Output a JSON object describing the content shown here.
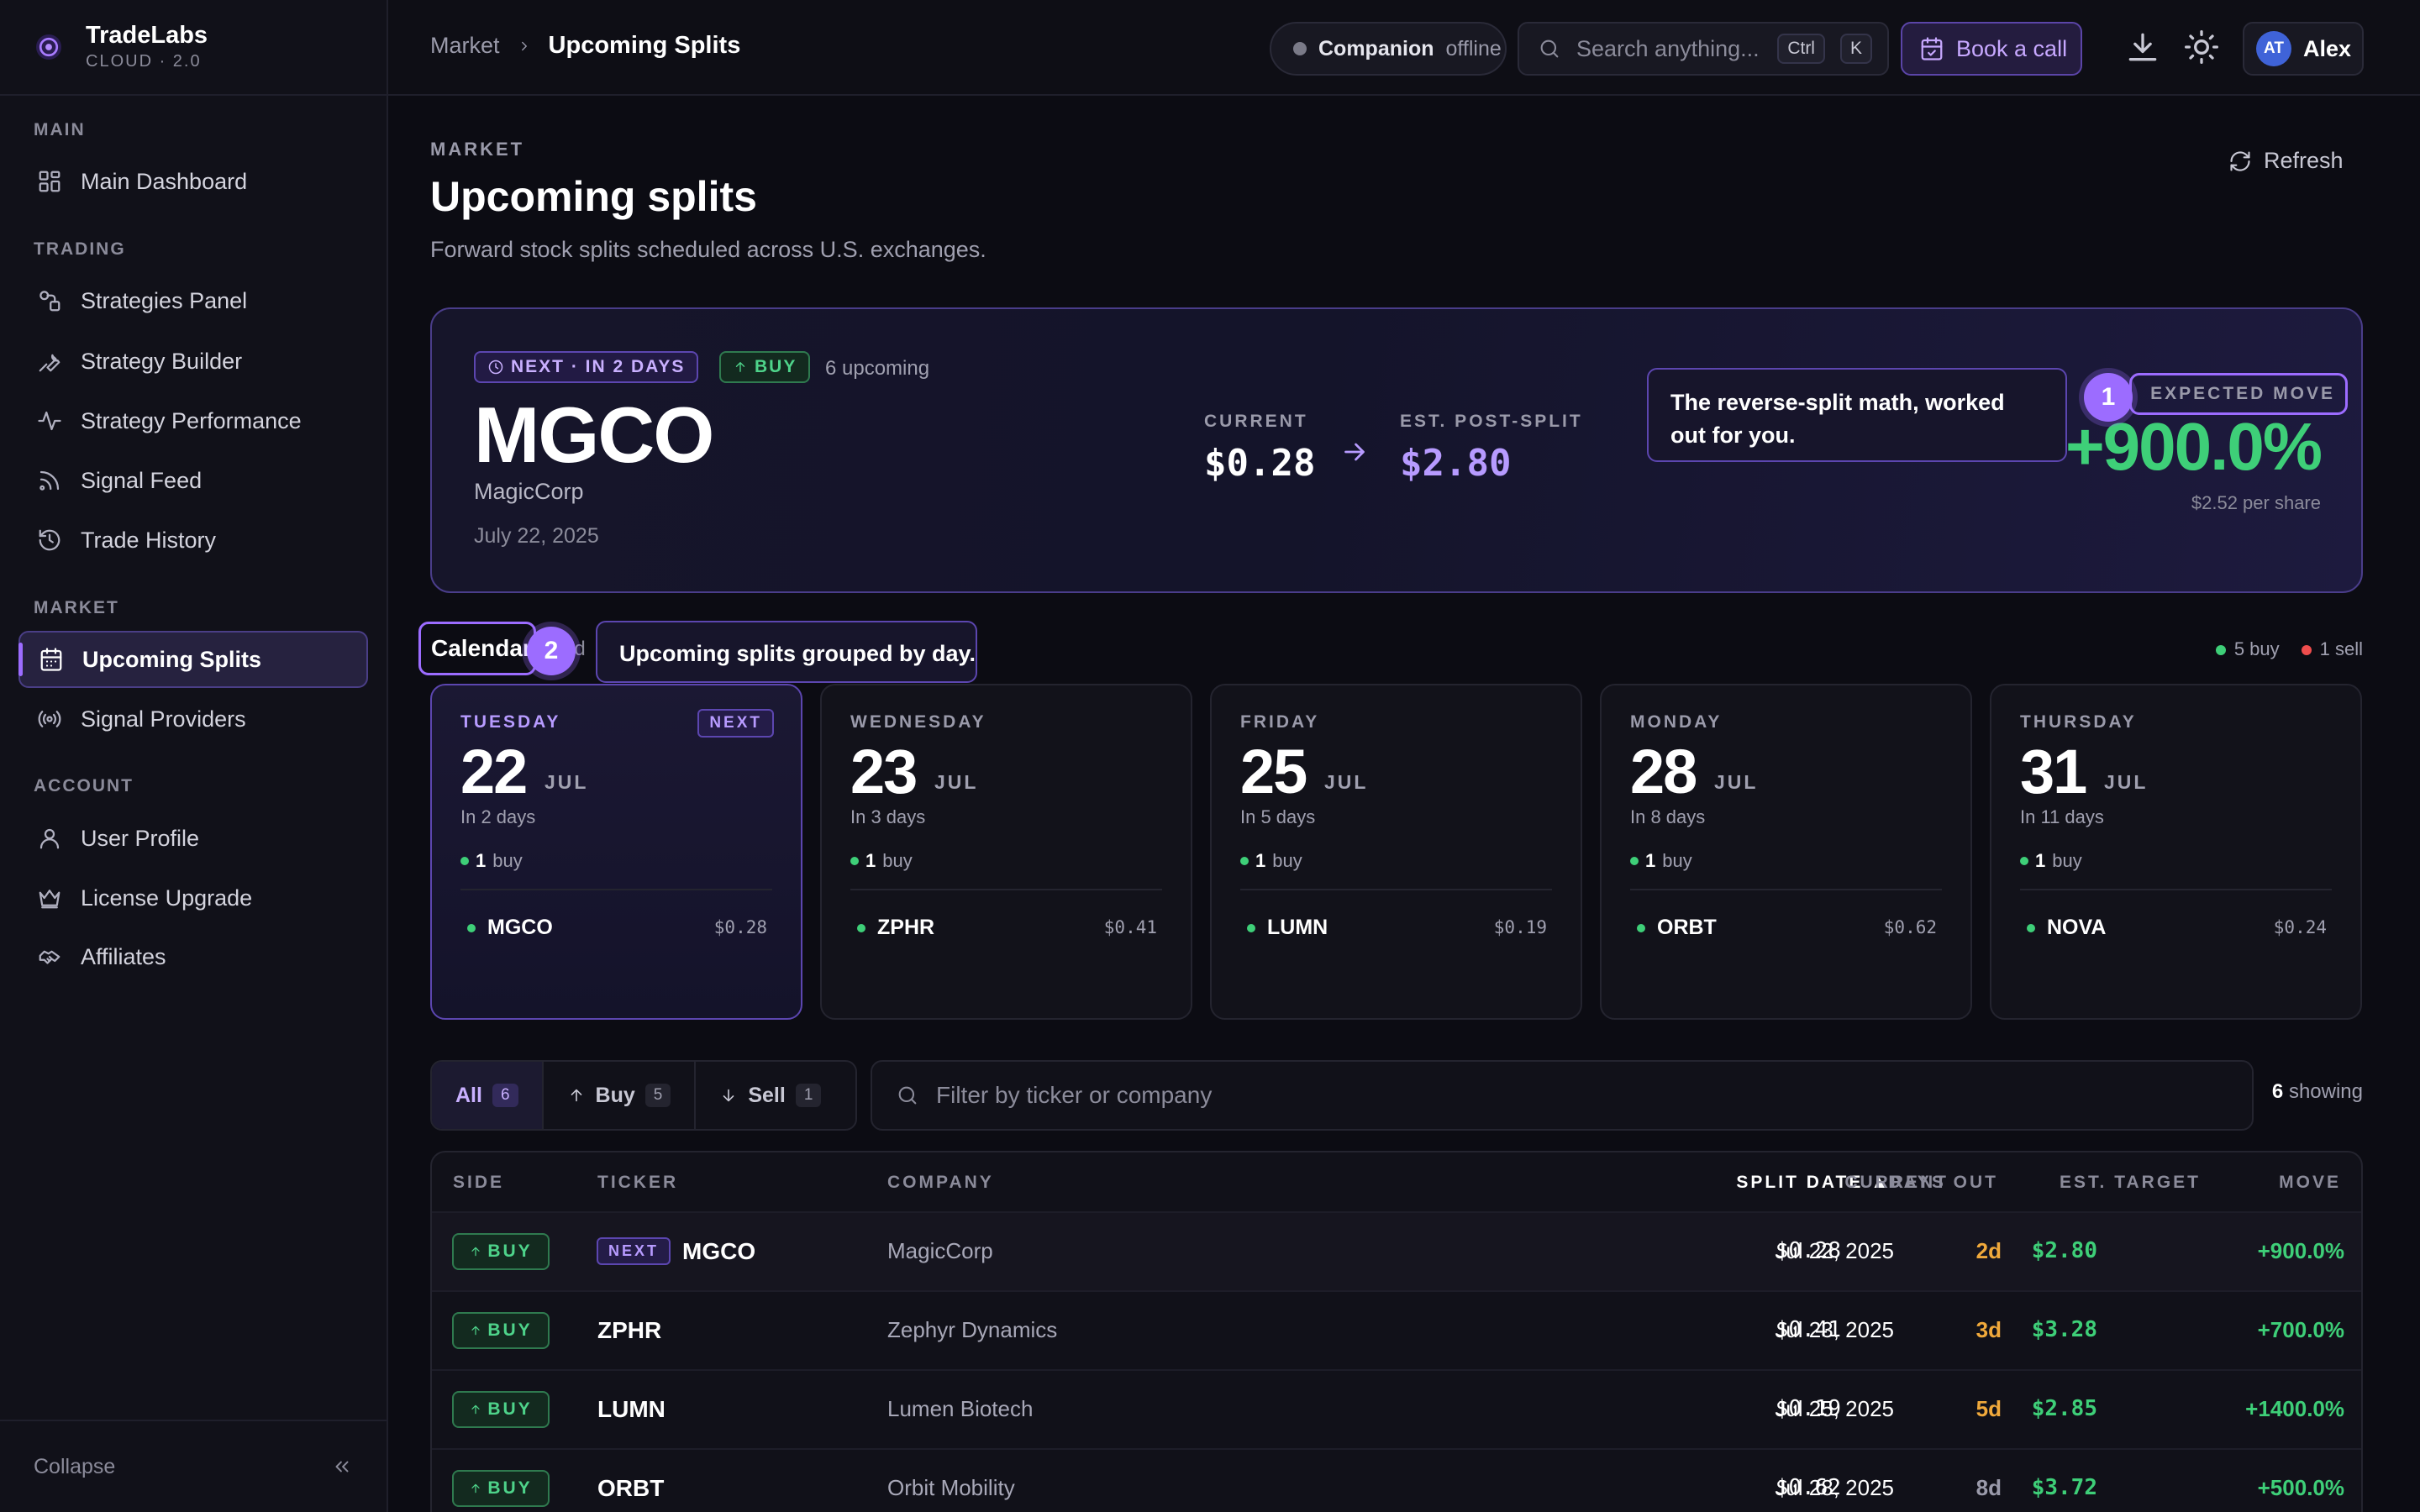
{
  "brand": {
    "name": "TradeLabs",
    "sub": "CLOUD · 2.0"
  },
  "sidebar": {
    "sections": [
      {
        "label": "MAIN",
        "items": [
          {
            "label": "Main Dashboard",
            "icon": "grid-icon"
          }
        ]
      },
      {
        "label": "TRADING",
        "items": [
          {
            "label": "Strategies Panel",
            "icon": "shapes-icon"
          },
          {
            "label": "Strategy Builder",
            "icon": "wrench-icon"
          },
          {
            "label": "Strategy Performance",
            "icon": "pulse-icon"
          },
          {
            "label": "Signal Feed",
            "icon": "rss-icon"
          },
          {
            "label": "Trade History",
            "icon": "history-icon"
          }
        ]
      },
      {
        "label": "MARKET",
        "items": [
          {
            "label": "Upcoming Splits",
            "icon": "calendar-icon",
            "active": true
          },
          {
            "label": "Signal Providers",
            "icon": "broadcast-icon"
          }
        ]
      },
      {
        "label": "ACCOUNT",
        "items": [
          {
            "label": "User Profile",
            "icon": "user-icon"
          },
          {
            "label": "License Upgrade",
            "icon": "crown-icon"
          },
          {
            "label": "Affiliates",
            "icon": "handshake-icon"
          }
        ]
      }
    ],
    "collapse": "Collapse"
  },
  "topbar": {
    "breadcrumb": {
      "parent": "Market",
      "current": "Upcoming Splits"
    },
    "companion": {
      "label": "Companion",
      "status": "offline"
    },
    "search": {
      "placeholder": "Search anything...",
      "kbd1": "Ctrl",
      "kbd2": "K"
    },
    "book_call": "Book a call",
    "user": {
      "initials": "AT",
      "name": "Alex"
    }
  },
  "header": {
    "kicker": "MARKET",
    "title": "Upcoming splits",
    "subtitle": "Forward stock splits scheduled across U.S. exchanges.",
    "refresh": "Refresh"
  },
  "hero": {
    "next_tag": "NEXT · IN 2 DAYS",
    "side_tag": "BUY",
    "upcoming": "6 upcoming",
    "ticker": "MGCO",
    "company": "MagicCorp",
    "date": "July 22, 2025",
    "current_label": "CURRENT",
    "current": "$0.28",
    "post_label": "EST. POST-SPLIT",
    "post": "$2.80",
    "move_label": "EXPECTED MOVE",
    "move": "+900.0%",
    "move_sub": "$2.52 per share",
    "tip": "The reverse-split math, worked out for you.",
    "tip_num": "1"
  },
  "calendar": {
    "tab": "Calendar",
    "tab_hidden": "ad",
    "tip": "Upcoming splits grouped by day.",
    "tip_num": "2",
    "legend": {
      "buy": "5 buy",
      "sell": "1 sell"
    },
    "days": [
      {
        "weekday": "TUESDAY",
        "day": "22",
        "month": "JUL",
        "in": "In 2 days",
        "count": "1",
        "count_label": "buy",
        "ticker": "MGCO",
        "price": "$0.28",
        "next": "NEXT"
      },
      {
        "weekday": "WEDNESDAY",
        "day": "23",
        "month": "JUL",
        "in": "In 3 days",
        "count": "1",
        "count_label": "buy",
        "ticker": "ZPHR",
        "price": "$0.41"
      },
      {
        "weekday": "FRIDAY",
        "day": "25",
        "month": "JUL",
        "in": "In 5 days",
        "count": "1",
        "count_label": "buy",
        "ticker": "LUMN",
        "price": "$0.19"
      },
      {
        "weekday": "MONDAY",
        "day": "28",
        "month": "JUL",
        "in": "In 8 days",
        "count": "1",
        "count_label": "buy",
        "ticker": "ORBT",
        "price": "$0.62"
      },
      {
        "weekday": "THURSDAY",
        "day": "31",
        "month": "JUL",
        "in": "In 11 days",
        "count": "1",
        "count_label": "buy",
        "ticker": "NOVA",
        "price": "$0.24"
      }
    ]
  },
  "filters": {
    "all": {
      "label": "All",
      "count": "6"
    },
    "buy": {
      "label": "Buy",
      "count": "5"
    },
    "sell": {
      "label": "Sell",
      "count": "1"
    },
    "search_placeholder": "Filter by ticker or company",
    "showing_count": "6",
    "showing_label": "showing"
  },
  "table": {
    "headers": {
      "side": "SIDE",
      "ticker": "TICKER",
      "company": "COMPANY",
      "split_date": "SPLIT DATE ▲",
      "days_out": "DAYS OUT",
      "current": "CURRENT",
      "target": "EST. TARGET",
      "move": "MOVE"
    },
    "rows": [
      {
        "side": "BUY",
        "next": "NEXT",
        "ticker": "MGCO",
        "company": "MagicCorp",
        "date": "Jul 22, 2025",
        "days": "2d",
        "current": "$0.28",
        "target": "$2.80",
        "move": "+900.0%",
        "days_color": "#f0a93b"
      },
      {
        "side": "BUY",
        "ticker": "ZPHR",
        "company": "Zephyr Dynamics",
        "date": "Jul 23, 2025",
        "days": "3d",
        "current": "$0.41",
        "target": "$3.28",
        "move": "+700.0%",
        "days_color": "#f0a93b"
      },
      {
        "side": "BUY",
        "ticker": "LUMN",
        "company": "Lumen Biotech",
        "date": "Jul 25, 2025",
        "days": "5d",
        "current": "$0.19",
        "target": "$2.85",
        "move": "+1400.0%",
        "days_color": "#f0a93b"
      },
      {
        "side": "BUY",
        "ticker": "ORBT",
        "company": "Orbit Mobility",
        "date": "Jul 28, 2025",
        "days": "8d",
        "current": "$0.62",
        "target": "$3.72",
        "move": "+500.0%",
        "days_color": "#9a9aaa"
      }
    ]
  },
  "colors": {
    "accent": "#9c6cff",
    "buy": "#3ecf78",
    "sell": "#ef4d4d",
    "warn": "#f0a93b"
  }
}
